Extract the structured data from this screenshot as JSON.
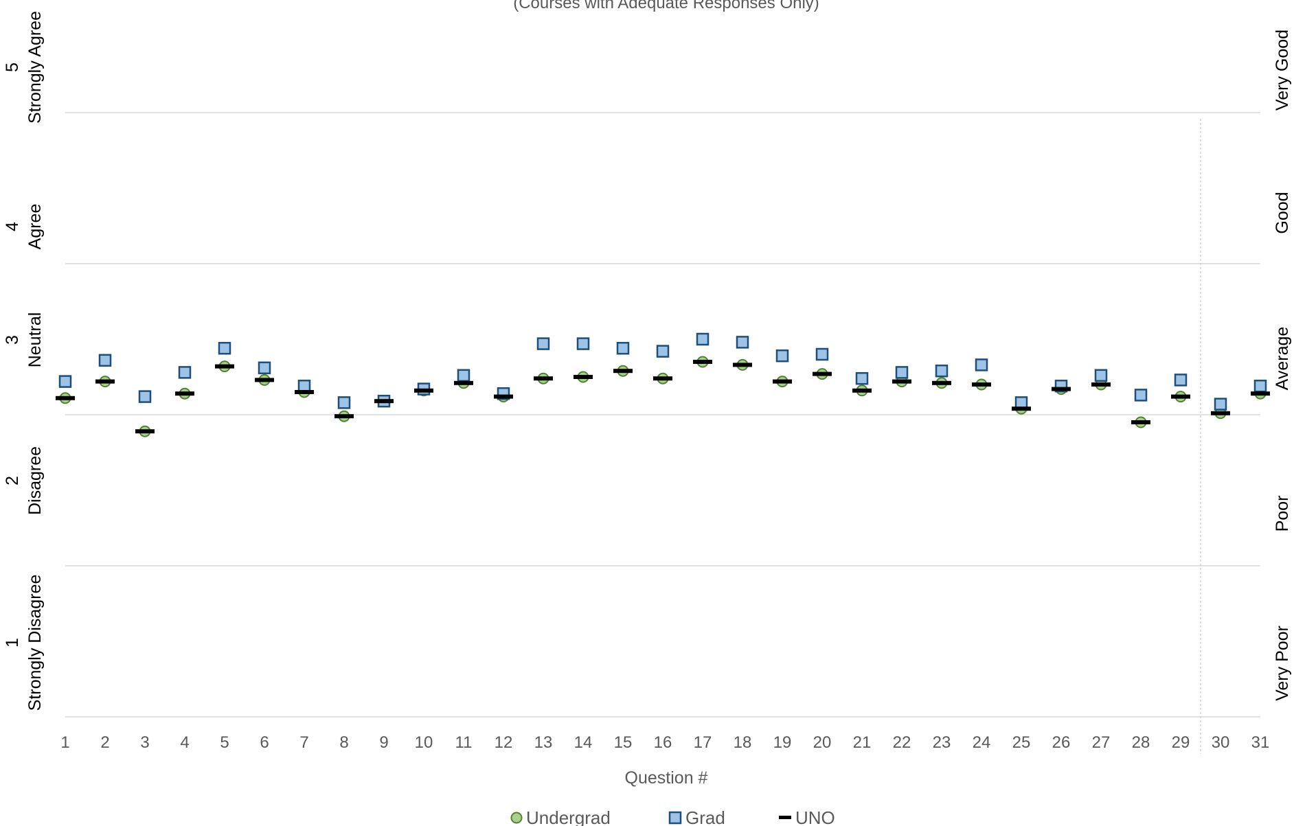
{
  "chart_data": {
    "type": "scatter",
    "subtitle": "(Courses with Adequate Responses Only)",
    "xlabel": "Question #",
    "ylim": [
      1,
      5
    ],
    "grid": true,
    "legend_position": "bottom",
    "divider_after_category": 29,
    "categories": [
      "1",
      "2",
      "3",
      "4",
      "5",
      "6",
      "7",
      "8",
      "9",
      "10",
      "11",
      "12",
      "13",
      "14",
      "15",
      "16",
      "17",
      "18",
      "19",
      "20",
      "21",
      "22",
      "23",
      "24",
      "25",
      "26",
      "27",
      "28",
      "29",
      "30",
      "31"
    ],
    "left_axis_labels": [
      {
        "value": 5,
        "number": "5",
        "text": "Strongly Agree"
      },
      {
        "value": 4,
        "number": "4",
        "text": "Agree"
      },
      {
        "value": 3,
        "number": "3",
        "text": "Neutral"
      },
      {
        "value": 2,
        "number": "2",
        "text": "Disagree"
      },
      {
        "value": 1,
        "number": "1",
        "text": "Strongly Disagree"
      }
    ],
    "right_axis_labels": [
      {
        "value": 5,
        "text": "Very Good"
      },
      {
        "value": 4,
        "text": "Good"
      },
      {
        "value": 3,
        "text": "Average"
      },
      {
        "value": 2,
        "text": "Poor"
      },
      {
        "value": 1,
        "text": "Very Poor"
      }
    ],
    "series": [
      {
        "name": "Undergrad",
        "marker": "circle",
        "fill": "#a9d18e",
        "stroke": "#548235",
        "values": [
          3.11,
          3.22,
          2.89,
          3.14,
          3.32,
          3.23,
          3.15,
          2.99,
          3.09,
          3.16,
          3.21,
          3.12,
          3.24,
          3.25,
          3.29,
          3.24,
          3.35,
          3.33,
          3.22,
          3.27,
          3.16,
          3.22,
          3.21,
          3.2,
          3.04,
          3.17,
          3.2,
          2.95,
          3.12,
          3.01,
          3.14
        ]
      },
      {
        "name": "Grad",
        "marker": "square",
        "fill": "#9dc3e6",
        "stroke": "#1f4e79",
        "values": [
          3.22,
          3.36,
          3.12,
          3.28,
          3.44,
          3.31,
          3.19,
          3.08,
          3.09,
          3.17,
          3.26,
          3.14,
          3.47,
          3.47,
          3.44,
          3.42,
          3.5,
          3.48,
          3.39,
          3.4,
          3.24,
          3.28,
          3.29,
          3.33,
          3.08,
          3.19,
          3.26,
          3.13,
          3.23,
          3.07,
          3.19
        ]
      },
      {
        "name": "UNO",
        "marker": "dash",
        "fill": "#000000",
        "stroke": "#000000",
        "values": [
          3.11,
          3.22,
          2.89,
          3.14,
          3.32,
          3.23,
          3.15,
          2.99,
          3.09,
          3.16,
          3.21,
          3.12,
          3.24,
          3.25,
          3.29,
          3.24,
          3.35,
          3.33,
          3.22,
          3.27,
          3.16,
          3.22,
          3.21,
          3.2,
          3.04,
          3.17,
          3.2,
          2.95,
          3.12,
          3.01,
          3.14
        ]
      }
    ]
  }
}
